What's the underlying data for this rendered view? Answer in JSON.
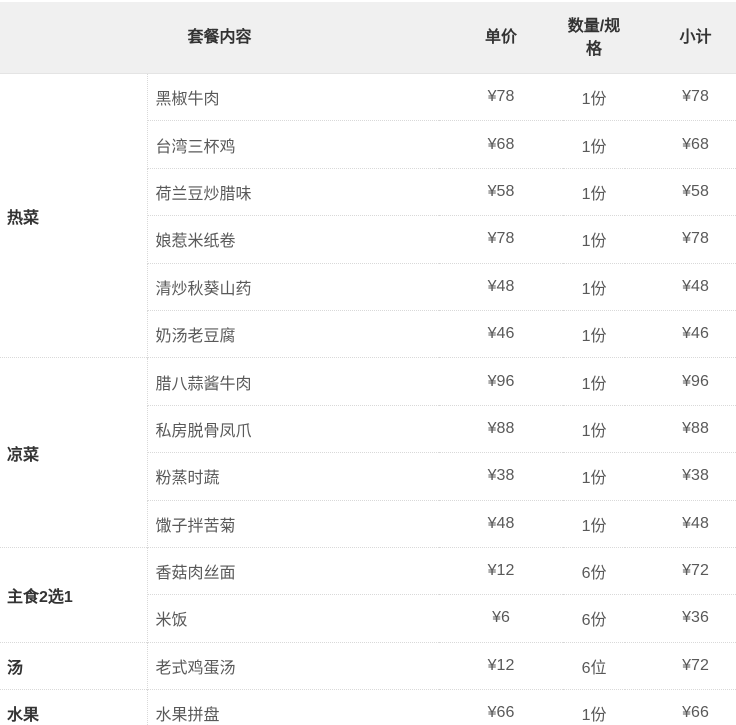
{
  "table": {
    "headers": {
      "content": "套餐内容",
      "unit_price": "单价",
      "quantity_spec": "数量/规格",
      "subtotal": "小计"
    },
    "groups": [
      {
        "category": "热菜",
        "items": [
          {
            "name": "黑椒牛肉",
            "price": "¥78",
            "qty": "1份",
            "subtotal": "¥78"
          },
          {
            "name": "台湾三杯鸡",
            "price": "¥68",
            "qty": "1份",
            "subtotal": "¥68"
          },
          {
            "name": "荷兰豆炒腊味",
            "price": "¥58",
            "qty": "1份",
            "subtotal": "¥58"
          },
          {
            "name": "娘惹米纸卷",
            "price": "¥78",
            "qty": "1份",
            "subtotal": "¥78"
          },
          {
            "name": "清炒秋葵山药",
            "price": "¥48",
            "qty": "1份",
            "subtotal": "¥48"
          },
          {
            "name": "奶汤老豆腐",
            "price": "¥46",
            "qty": "1份",
            "subtotal": "¥46"
          }
        ]
      },
      {
        "category": "凉菜",
        "items": [
          {
            "name": "腊八蒜酱牛肉",
            "price": "¥96",
            "qty": "1份",
            "subtotal": "¥96"
          },
          {
            "name": "私房脱骨凤爪",
            "price": "¥88",
            "qty": "1份",
            "subtotal": "¥88"
          },
          {
            "name": "粉蒸时蔬",
            "price": "¥38",
            "qty": "1份",
            "subtotal": "¥38"
          },
          {
            "name": "馓子拌苦菊",
            "price": "¥48",
            "qty": "1份",
            "subtotal": "¥48"
          }
        ]
      },
      {
        "category": "主食2选1",
        "items": [
          {
            "name": "香菇肉丝面",
            "price": "¥12",
            "qty": "6份",
            "subtotal": "¥72"
          },
          {
            "name": "米饭",
            "price": "¥6",
            "qty": "6份",
            "subtotal": "¥36"
          }
        ]
      },
      {
        "category": "汤",
        "items": [
          {
            "name": "老式鸡蛋汤",
            "price": "¥12",
            "qty": "6位",
            "subtotal": "¥72"
          }
        ]
      },
      {
        "category": "水果",
        "items": [
          {
            "name": "水果拼盘",
            "price": "¥66",
            "qty": "1份",
            "subtotal": "¥66"
          }
        ]
      }
    ],
    "colors": {
      "header_bg": "#f0f0f0",
      "header_text": "#333333",
      "category_text": "#333333",
      "body_text": "#595959",
      "divider_dotted": "#d9d9d9"
    }
  }
}
